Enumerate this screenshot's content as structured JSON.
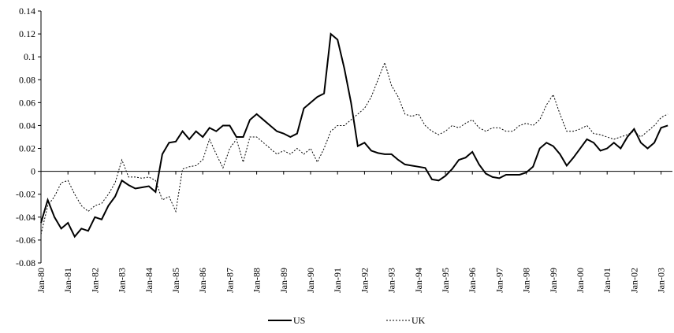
{
  "chart_data": {
    "type": "line",
    "categories": [
      "Jan-80",
      null,
      null,
      null,
      "Jan-81",
      null,
      null,
      null,
      "Jan-82",
      null,
      null,
      null,
      "Jan-83",
      null,
      null,
      null,
      "Jan-84",
      null,
      null,
      null,
      "Jan-85",
      null,
      null,
      null,
      "Jan-86",
      null,
      null,
      null,
      "Jan-87",
      null,
      null,
      null,
      "Jan-88",
      null,
      null,
      null,
      "Jan-89",
      null,
      null,
      null,
      "Jan-90",
      null,
      null,
      null,
      "Jan-91",
      null,
      null,
      null,
      "Jan-92",
      null,
      null,
      null,
      "Jan-93",
      null,
      null,
      null,
      "Jan-94",
      null,
      null,
      null,
      "Jan-95",
      null,
      null,
      null,
      "Jan-96",
      null,
      null,
      null,
      "Jan-97",
      null,
      null,
      null,
      "Jan-98",
      null,
      null,
      null,
      "Jan-99",
      null,
      null,
      null,
      "Jan-00",
      null,
      null,
      null,
      "Jan-01",
      null,
      null,
      null,
      "Jan-02",
      null,
      null,
      null,
      "Jan-03",
      null
    ],
    "series": [
      {
        "name": "US",
        "color": "#000000",
        "dash": "solid",
        "values": [
          -0.045,
          -0.025,
          -0.04,
          -0.05,
          -0.045,
          -0.057,
          -0.05,
          -0.052,
          -0.04,
          -0.042,
          -0.03,
          -0.022,
          -0.008,
          -0.012,
          -0.015,
          -0.014,
          -0.013,
          -0.018,
          0.015,
          0.025,
          0.026,
          0.035,
          0.028,
          0.035,
          0.03,
          0.038,
          0.035,
          0.04,
          0.04,
          0.03,
          0.03,
          0.045,
          0.05,
          0.045,
          0.04,
          0.035,
          0.033,
          0.03,
          0.033,
          0.055,
          0.06,
          0.065,
          0.068,
          0.12,
          0.115,
          0.09,
          0.06,
          0.022,
          0.025,
          0.018,
          0.016,
          0.015,
          0.015,
          0.01,
          0.006,
          0.005,
          0.004,
          0.003,
          -0.007,
          -0.008,
          -0.004,
          0.002,
          0.01,
          0.012,
          0.017,
          0.006,
          -0.002,
          -0.005,
          -0.006,
          -0.003,
          -0.003,
          -0.003,
          -0.001,
          0.004,
          0.02,
          0.025,
          0.022,
          0.015,
          0.005,
          0.012,
          0.02,
          0.028,
          0.025,
          0.018,
          0.02,
          0.025,
          0.02,
          0.03,
          0.037,
          0.025,
          0.02,
          0.025,
          0.038,
          0.04
        ]
      },
      {
        "name": "UK",
        "color": "#000000",
        "dash": "dotted",
        "values": [
          -0.055,
          -0.03,
          -0.022,
          -0.01,
          -0.008,
          -0.02,
          -0.03,
          -0.035,
          -0.03,
          -0.028,
          -0.02,
          -0.01,
          0.01,
          -0.005,
          -0.005,
          -0.006,
          -0.005,
          -0.008,
          -0.025,
          -0.022,
          -0.035,
          0.002,
          0.004,
          0.005,
          0.01,
          0.028,
          0.015,
          0.003,
          0.02,
          0.028,
          0.008,
          0.03,
          0.03,
          0.025,
          0.02,
          0.015,
          0.018,
          0.015,
          0.02,
          0.015,
          0.02,
          0.008,
          0.02,
          0.035,
          0.04,
          0.04,
          0.045,
          0.05,
          0.055,
          0.065,
          0.08,
          0.095,
          0.075,
          0.065,
          0.05,
          0.048,
          0.05,
          0.04,
          0.035,
          0.032,
          0.035,
          0.04,
          0.038,
          0.042,
          0.045,
          0.038,
          0.035,
          0.038,
          0.038,
          0.035,
          0.035,
          0.04,
          0.042,
          0.04,
          0.045,
          0.058,
          0.067,
          0.05,
          0.035,
          0.035,
          0.037,
          0.04,
          0.033,
          0.032,
          0.03,
          0.028,
          0.03,
          0.032,
          0.035,
          0.03,
          0.035,
          0.04,
          0.047,
          0.05
        ]
      }
    ],
    "ylim": [
      -0.08,
      0.14
    ],
    "yticks": [
      -0.08,
      -0.06,
      -0.04,
      -0.02,
      0,
      0.02,
      0.04,
      0.06,
      0.08,
      0.1,
      0.12,
      0.14
    ]
  }
}
